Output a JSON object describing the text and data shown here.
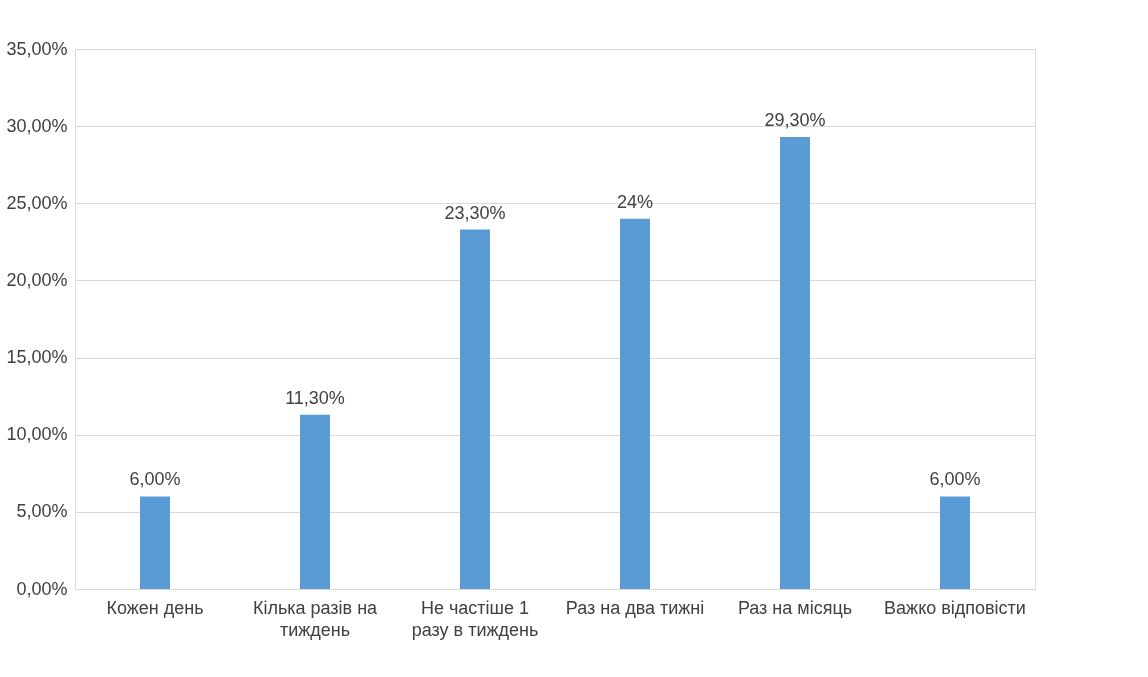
{
  "chart_data": {
    "type": "bar",
    "categories": [
      "Кожен день",
      "Кілька разів на тиждень",
      "Не частіше 1 разу в тиждень",
      "Раз на два тижні",
      "Раз на місяць",
      "Важко відповісти"
    ],
    "values": [
      6,
      11.3,
      23.3,
      24,
      29.3,
      6
    ],
    "value_labels": [
      "6,00%",
      "11,30%",
      "23,30%",
      "24%",
      "29,30%",
      "6,00%"
    ],
    "color": "#5b9bd5",
    "ylim": [
      0,
      35
    ],
    "yticks": [
      {
        "value": 0,
        "label": "0,00%"
      },
      {
        "value": 5,
        "label": "5,00%"
      },
      {
        "value": 10,
        "label": "10,00%"
      },
      {
        "value": 15,
        "label": "15,00%"
      },
      {
        "value": 20,
        "label": "20,00%"
      },
      {
        "value": 25,
        "label": "25,00%"
      },
      {
        "value": 30,
        "label": "30,00%"
      },
      {
        "value": 35,
        "label": "35,00%"
      }
    ],
    "grid": "y"
  }
}
